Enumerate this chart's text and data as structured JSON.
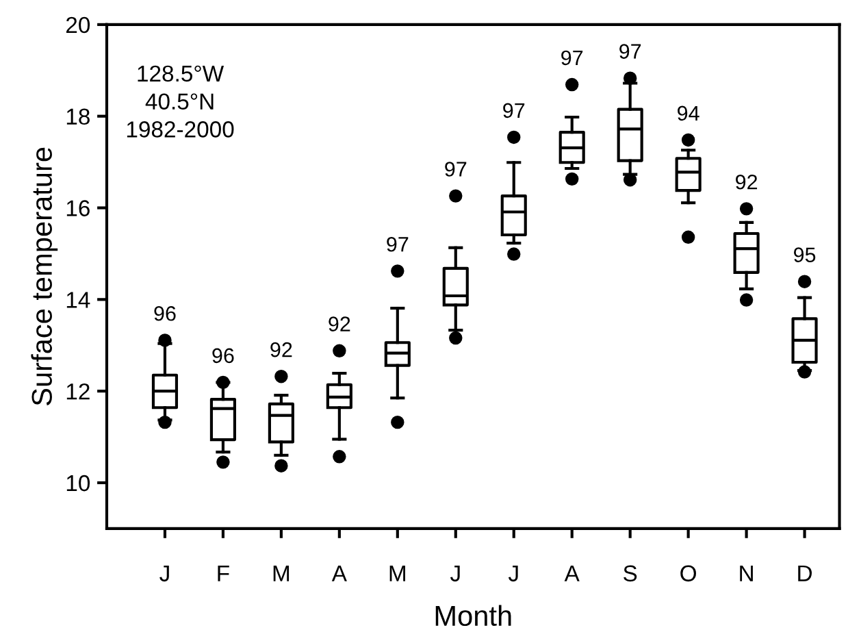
{
  "chart_data": {
    "type": "box",
    "xlabel": "Month",
    "ylabel": "Surface temperature",
    "categories": [
      "J",
      "F",
      "M",
      "A",
      "M",
      "J",
      "J",
      "A",
      "S",
      "O",
      "N",
      "D"
    ],
    "ylim": [
      9,
      20
    ],
    "yticks": [
      10,
      12,
      14,
      16,
      18,
      20
    ],
    "grid": false,
    "marker": "circle",
    "boxes": [
      {
        "low": 11.37,
        "q1": 11.64,
        "median": 12.0,
        "q3": 12.35,
        "high": 13.04,
        "outliers": [
          11.32,
          13.11
        ]
      },
      {
        "low": 10.67,
        "q1": 10.94,
        "median": 11.62,
        "q3": 11.82,
        "high": 12.19,
        "outliers": [
          10.45,
          12.19
        ]
      },
      {
        "low": 10.6,
        "q1": 10.89,
        "median": 11.47,
        "q3": 11.72,
        "high": 11.91,
        "outliers": [
          10.37,
          12.32
        ]
      },
      {
        "low": 10.95,
        "q1": 11.64,
        "median": 11.87,
        "q3": 12.14,
        "high": 12.39,
        "outliers": [
          10.57,
          12.88
        ]
      },
      {
        "low": 11.85,
        "q1": 12.56,
        "median": 12.83,
        "q3": 13.06,
        "high": 13.81,
        "outliers": [
          11.32,
          14.62
        ]
      },
      {
        "low": 13.33,
        "q1": 13.88,
        "median": 14.08,
        "q3": 14.68,
        "high": 15.13,
        "outliers": [
          13.16,
          16.26
        ]
      },
      {
        "low": 15.23,
        "q1": 15.41,
        "median": 15.91,
        "q3": 16.26,
        "high": 16.99,
        "outliers": [
          14.99,
          17.54
        ]
      },
      {
        "low": 16.86,
        "q1": 16.99,
        "median": 17.31,
        "q3": 17.65,
        "high": 17.98,
        "outliers": [
          16.63,
          18.69
        ]
      },
      {
        "low": 16.73,
        "q1": 17.03,
        "median": 17.72,
        "q3": 18.15,
        "high": 18.72,
        "outliers": [
          16.61,
          18.83
        ]
      },
      {
        "low": 16.11,
        "q1": 16.38,
        "median": 16.78,
        "q3": 17.08,
        "high": 17.26,
        "outliers": [
          15.36,
          17.48
        ]
      },
      {
        "low": 14.23,
        "q1": 14.59,
        "median": 15.11,
        "q3": 15.44,
        "high": 15.68,
        "outliers": [
          13.99,
          15.98
        ]
      },
      {
        "low": 12.45,
        "q1": 12.63,
        "median": 13.11,
        "q3": 13.58,
        "high": 14.04,
        "outliers": [
          12.42,
          14.39
        ]
      }
    ],
    "annotations": [
      "128.5°W\n40.5°N\n1982-2000",
      "96",
      "96",
      "92",
      "92",
      "97",
      "97",
      "97",
      "97",
      "97",
      "94",
      "92",
      "95"
    ]
  }
}
